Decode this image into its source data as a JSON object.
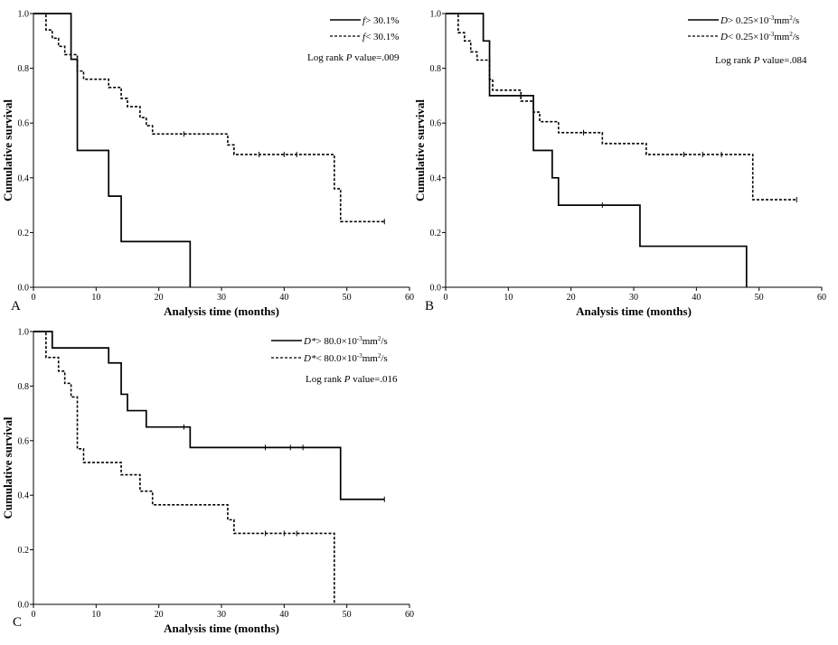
{
  "chart_data": [
    {
      "type": "line",
      "panel_label": "A",
      "xlabel": "Analysis time (months)",
      "ylabel": "Cumulative survival",
      "xlim": [
        0,
        60
      ],
      "ylim": [
        0,
        1
      ],
      "xticks": [
        "0",
        "10",
        "20",
        "30",
        "40",
        "50",
        "60"
      ],
      "yticks": [
        "0.0",
        "0.2",
        "0.4",
        "0.6",
        "0.8",
        "1.0"
      ],
      "pvalue": {
        "prefix": "Log rank ",
        "italic": "P",
        "suffix": " value=.009"
      },
      "series": [
        {
          "name": "f> 30.1%",
          "legend_italic": "f",
          "legend_rest": "> 30.1%",
          "style": "solid",
          "steps": [
            [
              0,
              1.0
            ],
            [
              6,
              0.833
            ],
            [
              7,
              0.5
            ],
            [
              12,
              0.333
            ],
            [
              14,
              0.167
            ],
            [
              25,
              0.0
            ]
          ],
          "end": 25,
          "censors": []
        },
        {
          "name": "f< 30.1%",
          "legend_italic": "f",
          "legend_rest": "< 30.1%",
          "style": "dashed",
          "steps": [
            [
              0,
              1.0
            ],
            [
              2,
              0.94
            ],
            [
              3,
              0.91
            ],
            [
              4,
              0.88
            ],
            [
              5,
              0.85
            ],
            [
              7,
              0.79
            ],
            [
              8,
              0.76
            ],
            [
              12,
              0.73
            ],
            [
              14,
              0.69
            ],
            [
              15,
              0.66
            ],
            [
              17,
              0.62
            ],
            [
              18,
              0.59
            ],
            [
              19,
              0.56
            ],
            [
              31,
              0.52
            ],
            [
              32,
              0.485
            ],
            [
              48,
              0.36
            ],
            [
              49,
              0.24
            ]
          ],
          "end": 56,
          "censors": [
            [
              24,
              0.56
            ],
            [
              36,
              0.485
            ],
            [
              40,
              0.485
            ],
            [
              42,
              0.485
            ],
            [
              56,
              0.24
            ]
          ]
        }
      ]
    },
    {
      "type": "line",
      "panel_label": "B",
      "xlabel": "Analysis time (months)",
      "ylabel": "Cumulative survival",
      "xlim": [
        0,
        60
      ],
      "ylim": [
        0,
        1
      ],
      "xticks": [
        "0",
        "10",
        "20",
        "30",
        "40",
        "50",
        "60"
      ],
      "yticks": [
        "0.0",
        "0.2",
        "0.4",
        "0.6",
        "0.8",
        "1.0"
      ],
      "pvalue": {
        "prefix": "Log rank ",
        "italic": "P",
        "suffix": " value=.084"
      },
      "series": [
        {
          "name": "D> 0.25×10−3mm2/s",
          "legend_italic": "D",
          "legend_rest": "> 0.25×10",
          "legend_sup1": "-3",
          "legend_mid": "mm",
          "legend_sup2": "2",
          "legend_end": "/s",
          "style": "solid",
          "steps": [
            [
              0,
              1.0
            ],
            [
              6,
              0.9
            ],
            [
              7,
              0.7
            ],
            [
              14,
              0.5
            ],
            [
              17,
              0.4
            ],
            [
              18,
              0.3
            ],
            [
              31,
              0.15
            ],
            [
              48,
              0.0
            ]
          ],
          "end": 48,
          "censors": [
            [
              25,
              0.3
            ]
          ]
        },
        {
          "name": "D< 0.25×10−3mm2/s",
          "legend_italic": "D",
          "legend_rest": "< 0.25×10",
          "legend_sup1": "-3",
          "legend_mid": "mm",
          "legend_sup2": "2",
          "legend_end": "/s",
          "style": "dashed",
          "steps": [
            [
              0,
              1.0
            ],
            [
              2,
              0.93
            ],
            [
              3,
              0.9
            ],
            [
              4,
              0.86
            ],
            [
              5,
              0.83
            ],
            [
              7,
              0.76
            ],
            [
              7.5,
              0.72
            ],
            [
              12,
              0.68
            ],
            [
              14,
              0.64
            ],
            [
              15,
              0.605
            ],
            [
              18,
              0.565
            ],
            [
              25,
              0.525
            ],
            [
              32,
              0.485
            ],
            [
              49,
              0.32
            ]
          ],
          "end": 56,
          "censors": [
            [
              22,
              0.565
            ],
            [
              38,
              0.485
            ],
            [
              41,
              0.485
            ],
            [
              44,
              0.485
            ],
            [
              56,
              0.32
            ]
          ]
        }
      ]
    },
    {
      "type": "line",
      "panel_label": "C",
      "xlabel": "Analysis time (months)",
      "ylabel": "Cumulative survival",
      "xlim": [
        0,
        60
      ],
      "ylim": [
        0,
        1
      ],
      "xticks": [
        "0",
        "10",
        "20",
        "30",
        "40",
        "50",
        "60"
      ],
      "yticks": [
        "0.0",
        "0.2",
        "0.4",
        "0.6",
        "0.8",
        "1.0"
      ],
      "pvalue": {
        "prefix": "Log rank ",
        "italic": "P",
        "suffix": " value=.016"
      },
      "series": [
        {
          "name": "D*> 80.0×10−3mm2/s",
          "legend_italic": "D*",
          "legend_rest": "> 80.0×10",
          "legend_sup1": "-3",
          "legend_mid": "mm",
          "legend_sup2": "2",
          "legend_end": "/s",
          "style": "solid",
          "steps": [
            [
              0,
              1.0
            ],
            [
              3,
              0.94
            ],
            [
              12,
              0.885
            ],
            [
              14,
              0.77
            ],
            [
              15,
              0.71
            ],
            [
              18,
              0.65
            ],
            [
              25,
              0.575
            ],
            [
              49,
              0.385
            ]
          ],
          "end": 56,
          "censors": [
            [
              24,
              0.65
            ],
            [
              37,
              0.575
            ],
            [
              41,
              0.575
            ],
            [
              43,
              0.575
            ],
            [
              56,
              0.385
            ]
          ]
        },
        {
          "name": "D*< 80.0×10−3mm2/s",
          "legend_italic": "D*",
          "legend_rest": "< 80.0×10",
          "legend_sup1": "-3",
          "legend_mid": "mm",
          "legend_sup2": "2",
          "legend_end": "/s",
          "style": "dashed",
          "steps": [
            [
              0,
              1.0
            ],
            [
              2,
              0.905
            ],
            [
              4,
              0.855
            ],
            [
              5,
              0.81
            ],
            [
              6,
              0.76
            ],
            [
              7,
              0.57
            ],
            [
              8,
              0.52
            ],
            [
              14,
              0.475
            ],
            [
              17,
              0.415
            ],
            [
              19,
              0.365
            ],
            [
              31,
              0.31
            ],
            [
              32,
              0.26
            ],
            [
              48,
              0.0
            ]
          ],
          "end": 48,
          "censors": [
            [
              37,
              0.26
            ],
            [
              40,
              0.26
            ],
            [
              42,
              0.26
            ]
          ]
        }
      ]
    }
  ]
}
